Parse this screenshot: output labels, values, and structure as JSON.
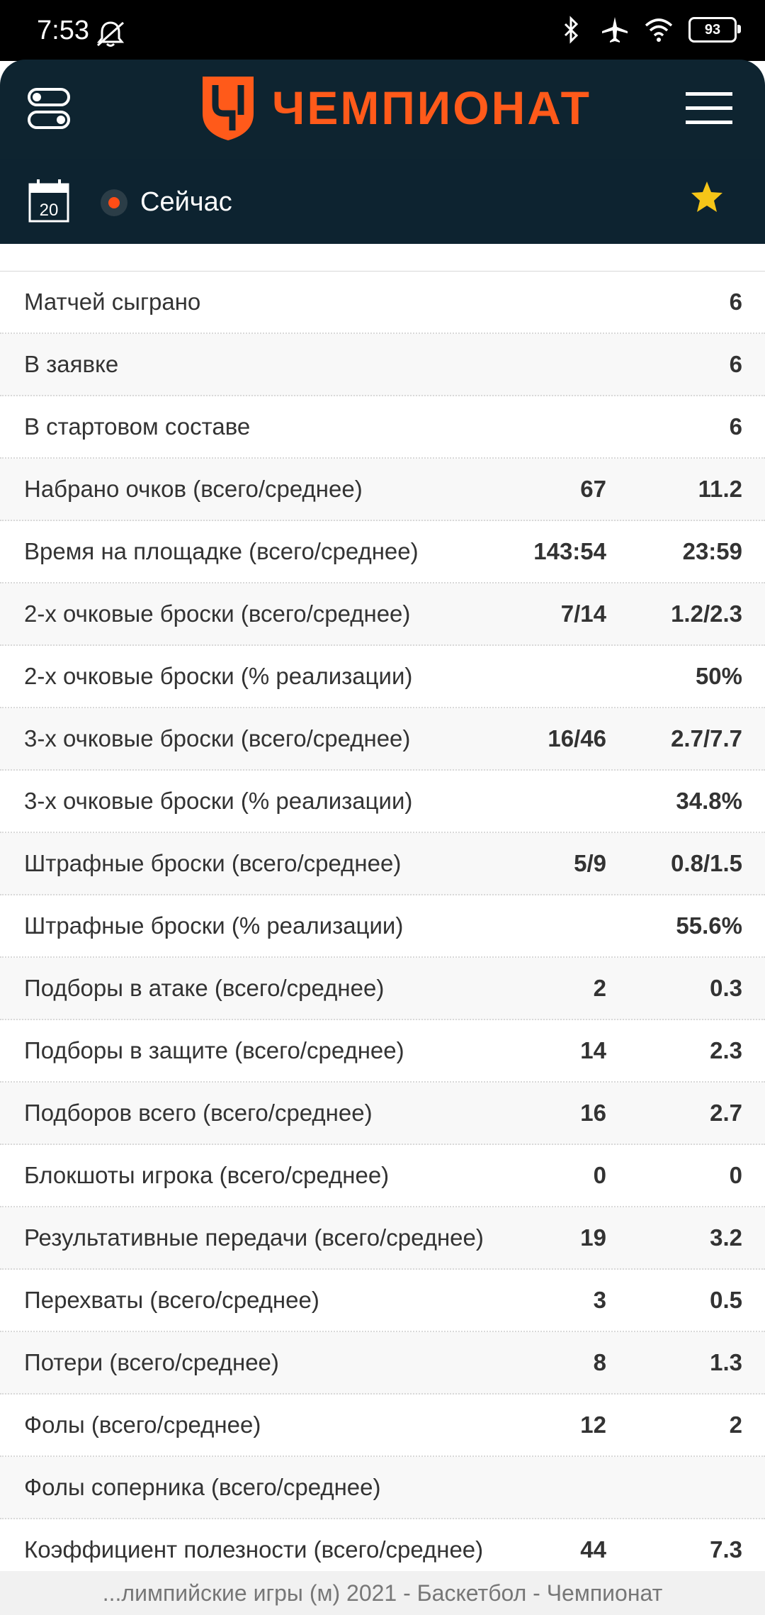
{
  "status_bar": {
    "time": "7:53",
    "battery": "93"
  },
  "header": {
    "logo_text": "ЧЕМПИОНАТ"
  },
  "subheader": {
    "calendar_day": "20",
    "live_label": "Сейчас"
  },
  "stats": {
    "rows": [
      {
        "label": "Матчей сыграно",
        "total": "",
        "avg": "6"
      },
      {
        "label": "В заявке",
        "total": "",
        "avg": "6"
      },
      {
        "label": "В стартовом составе",
        "total": "",
        "avg": "6"
      },
      {
        "label": "Набрано очков (всего/среднее)",
        "total": "67",
        "avg": "11.2"
      },
      {
        "label": "Время на площадке (всего/среднее)",
        "total": "143:54",
        "avg": "23:59"
      },
      {
        "label": "2-х очковые броски (всего/среднее)",
        "total": "7/14",
        "avg": "1.2/2.3"
      },
      {
        "label": "2-х очковые броски (% реализации)",
        "total": "",
        "avg": "50%"
      },
      {
        "label": "3-х очковые броски (всего/среднее)",
        "total": "16/46",
        "avg": "2.7/7.7"
      },
      {
        "label": "3-х очковые броски (% реализации)",
        "total": "",
        "avg": "34.8%"
      },
      {
        "label": "Штрафные броски (всего/среднее)",
        "total": "5/9",
        "avg": "0.8/1.5"
      },
      {
        "label": "Штрафные броски (% реализации)",
        "total": "",
        "avg": "55.6%"
      },
      {
        "label": "Подборы в атаке (всего/среднее)",
        "total": "2",
        "avg": "0.3"
      },
      {
        "label": "Подборы в защите (всего/среднее)",
        "total": "14",
        "avg": "2.3"
      },
      {
        "label": "Подборов всего (всего/среднее)",
        "total": "16",
        "avg": "2.7"
      },
      {
        "label": "Блокшоты игрока (всего/среднее)",
        "total": "0",
        "avg": "0"
      },
      {
        "label": "Результативные передачи (всего/среднее)",
        "total": "19",
        "avg": "3.2"
      },
      {
        "label": "Перехваты (всего/среднее)",
        "total": "3",
        "avg": "0.5"
      },
      {
        "label": "Потери (всего/среднее)",
        "total": "8",
        "avg": "1.3"
      },
      {
        "label": "Фолы (всего/среднее)",
        "total": "12",
        "avg": "2"
      },
      {
        "label": "Фолы соперника (всего/среднее)",
        "total": "",
        "avg": ""
      },
      {
        "label": "Коэффициент полезности (всего/среднее)",
        "total": "44",
        "avg": "7.3"
      }
    ]
  },
  "footer": {
    "caption": "...лимпийские игры (м) 2021 - Баскетбол - Чемпионат"
  },
  "colors": {
    "brand": "#ff5a1a",
    "header_bg": "#0e2430",
    "star": "#f5c518"
  }
}
